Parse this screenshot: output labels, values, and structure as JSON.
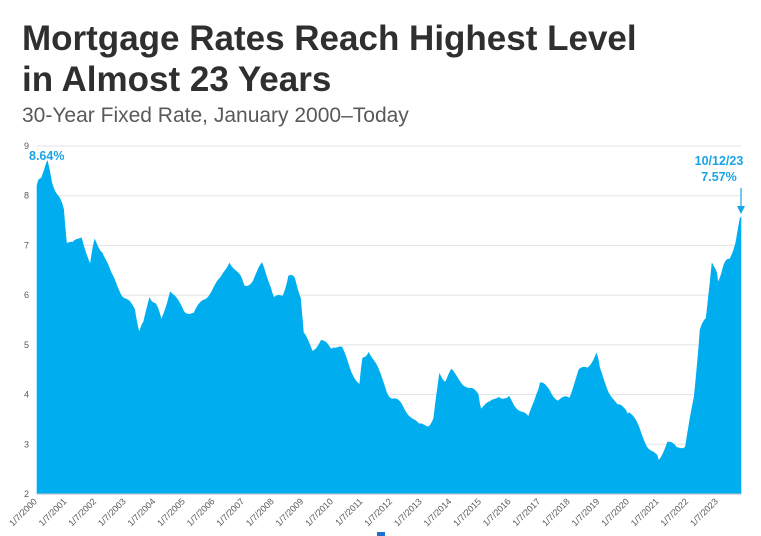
{
  "title_line1": "Mortgage Rates Reach Highest Level",
  "title_line2": "in Almost 23 Years",
  "subtitle": "30-Year Fixed Rate, January 2000–Today",
  "colors": {
    "fill": "#00aeef",
    "annotation": "#1aa3e6",
    "grid": "#e3e3e3",
    "title": "#2f2f2f"
  },
  "chart_data": {
    "type": "area",
    "title": "",
    "xlabel": "",
    "ylabel": "",
    "ylim": [
      2,
      9
    ],
    "yticks": [
      2,
      3,
      4,
      5,
      6,
      7,
      8,
      9
    ],
    "xlim": [
      2000.0,
      2023.78
    ],
    "grid": true,
    "x_tick_labels": [
      "1/7/2000",
      "1/7/2001",
      "1/7/2002",
      "1/7/2003",
      "1/7/2004",
      "1/7/2005",
      "1/7/2006",
      "1/7/2007",
      "1/7/2008",
      "1/7/2009",
      "1/7/2010",
      "1/7/2011",
      "1/7/2012",
      "1/7/2013",
      "1/7/2014",
      "1/7/2015",
      "1/7/2016",
      "1/7/2017",
      "1/7/2018",
      "1/7/2019",
      "1/7/2020",
      "1/7/2021",
      "1/7/2022",
      "1/7/2023"
    ],
    "annotations": [
      {
        "label": "8.64%",
        "x": 2000.35,
        "y": 8.64
      },
      {
        "label": "10/12/23",
        "label2": "7.57%",
        "x": 2023.78,
        "y": 7.57
      }
    ],
    "series": [
      {
        "x": [
          2000.0,
          2000.1,
          2000.2,
          2000.35,
          2000.5,
          2000.7,
          2000.9,
          2001.0,
          2001.2,
          2001.5,
          2001.8,
          2001.95,
          2002.2,
          2002.5,
          2002.8,
          2003.0,
          2003.3,
          2003.45,
          2003.6,
          2003.8,
          2004.0,
          2004.2,
          2004.5,
          2004.8,
          2005.0,
          2005.3,
          2005.6,
          2005.9,
          2006.2,
          2006.5,
          2006.8,
          2007.0,
          2007.3,
          2007.6,
          2007.9,
          2008.0,
          2008.3,
          2008.5,
          2008.7,
          2008.9,
          2009.0,
          2009.3,
          2009.6,
          2009.9,
          2010.0,
          2010.3,
          2010.6,
          2010.9,
          2011.0,
          2011.2,
          2011.5,
          2011.8,
          2012.0,
          2012.3,
          2012.6,
          2012.9,
          2013.2,
          2013.4,
          2013.6,
          2013.8,
          2014.0,
          2014.3,
          2014.6,
          2014.9,
          2015.0,
          2015.3,
          2015.6,
          2015.9,
          2016.0,
          2016.3,
          2016.6,
          2016.9,
          2017.0,
          2017.3,
          2017.6,
          2017.9,
          2018.0,
          2018.3,
          2018.6,
          2018.9,
          2019.0,
          2019.3,
          2019.6,
          2019.9,
          2020.0,
          2020.3,
          2020.6,
          2020.9,
          2021.0,
          2021.3,
          2021.6,
          2021.9,
          2022.0,
          2022.2,
          2022.4,
          2022.6,
          2022.8,
          2022.95,
          2023.0,
          2023.2,
          2023.4,
          2023.6,
          2023.78
        ],
        "values": [
          8.2,
          8.3,
          8.5,
          8.64,
          8.3,
          8.0,
          7.7,
          7.1,
          7.0,
          7.2,
          6.6,
          7.1,
          6.9,
          6.4,
          6.1,
          5.9,
          5.7,
          5.3,
          5.4,
          6.0,
          5.8,
          5.5,
          6.1,
          5.8,
          5.7,
          5.6,
          5.9,
          6.1,
          6.3,
          6.7,
          6.4,
          6.2,
          6.3,
          6.6,
          6.2,
          5.9,
          6.0,
          6.4,
          6.3,
          6.0,
          5.2,
          4.9,
          5.1,
          4.9,
          5.0,
          4.9,
          4.5,
          4.2,
          4.7,
          4.9,
          4.5,
          4.1,
          3.9,
          3.8,
          3.6,
          3.35,
          3.4,
          3.5,
          4.4,
          4.3,
          4.45,
          4.3,
          4.1,
          4.0,
          3.75,
          3.8,
          4.0,
          3.9,
          3.9,
          3.7,
          3.5,
          4.1,
          4.2,
          4.1,
          3.9,
          3.9,
          4.0,
          4.45,
          4.55,
          4.85,
          4.5,
          4.1,
          3.75,
          3.7,
          3.65,
          3.35,
          3.0,
          2.75,
          2.7,
          3.05,
          2.9,
          3.0,
          3.25,
          4.0,
          5.3,
          5.5,
          6.7,
          6.4,
          6.3,
          6.6,
          6.7,
          7.1,
          7.57
        ]
      }
    ]
  }
}
